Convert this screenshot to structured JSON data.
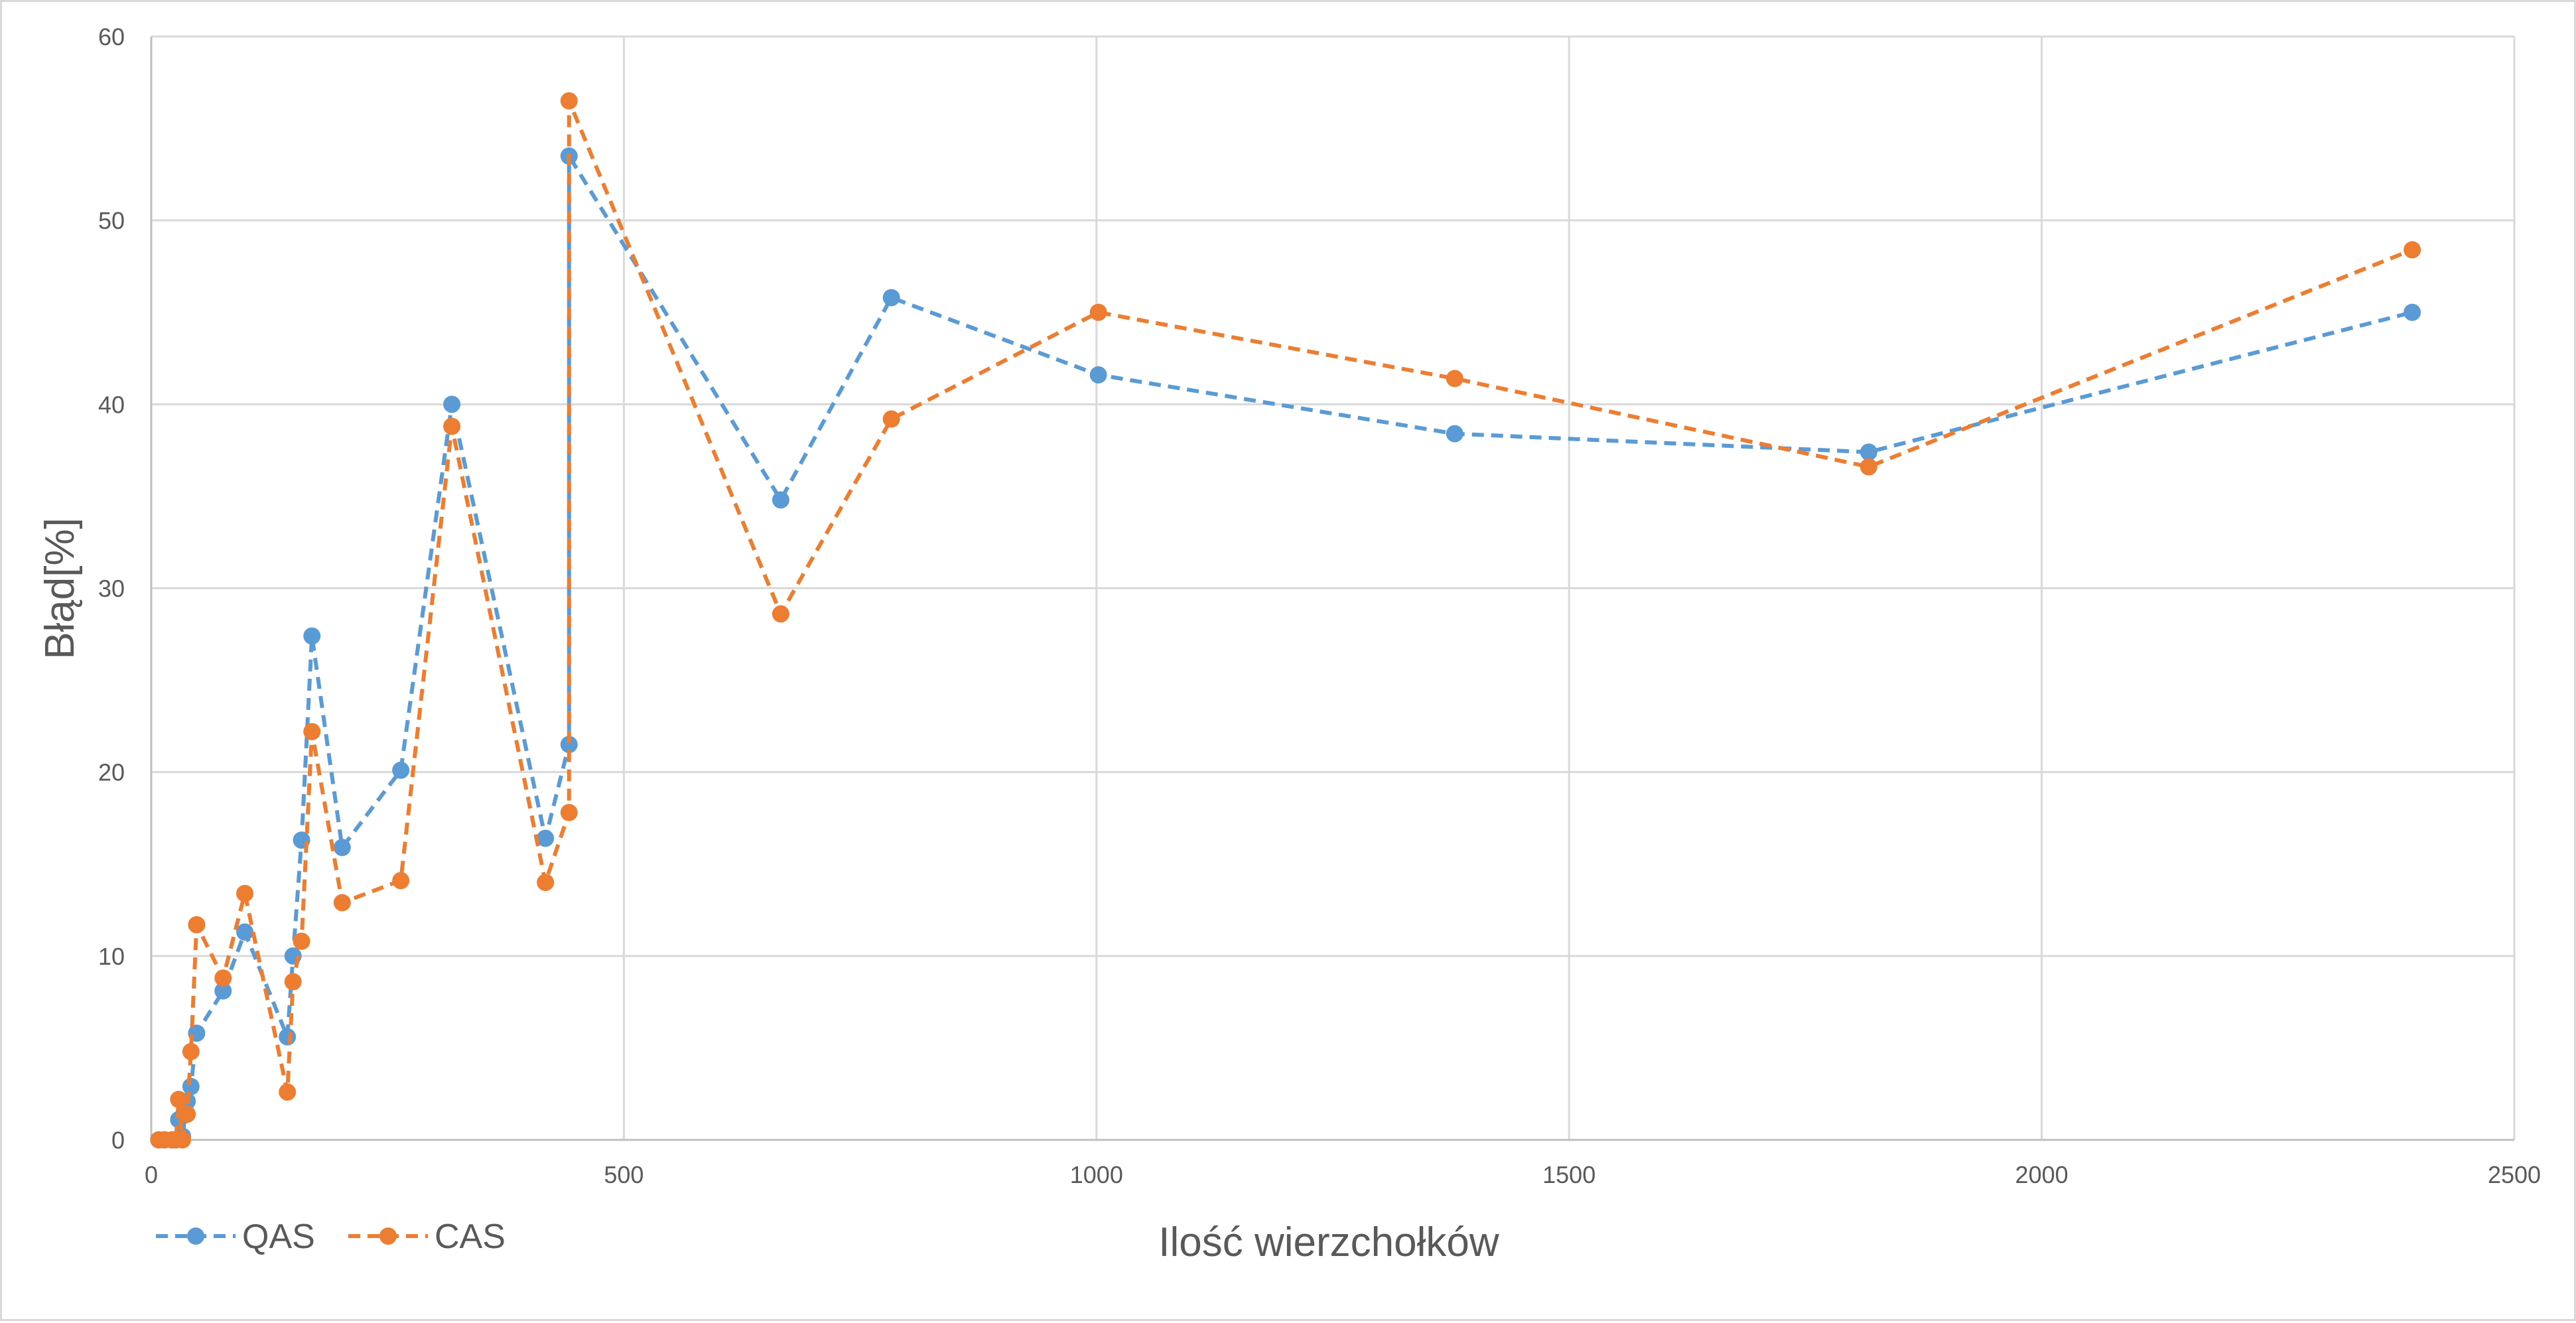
{
  "chart_data": {
    "type": "line",
    "title": "",
    "xlabel": "Ilość wierzchołków",
    "ylabel": "Błąd[%]",
    "xlim": [
      0,
      2500
    ],
    "ylim": [
      0,
      60
    ],
    "x_ticks": [
      "0",
      "500",
      "1000",
      "1500",
      "2000",
      "2500"
    ],
    "y_ticks": [
      "0",
      "10",
      "20",
      "30",
      "40",
      "50",
      "60"
    ],
    "grid": true,
    "legend_position": "bottom-left",
    "series": [
      {
        "name": "QAS",
        "color": "#5b9bd5",
        "line_style": "dashed",
        "marker": "circle",
        "points": [
          [
            8,
            0
          ],
          [
            14,
            0
          ],
          [
            22,
            0
          ],
          [
            26,
            0
          ],
          [
            29,
            1.1
          ],
          [
            33,
            0.2
          ],
          [
            38,
            2.1
          ],
          [
            42,
            2.9
          ],
          [
            48,
            5.8
          ],
          [
            76,
            8.1
          ],
          [
            99,
            11.3
          ],
          [
            144,
            5.6
          ],
          [
            150,
            10
          ],
          [
            159,
            16.3
          ],
          [
            170,
            27.4
          ],
          [
            202,
            15.9
          ],
          [
            264,
            20.1
          ],
          [
            318,
            40
          ],
          [
            417,
            16.4
          ],
          [
            442,
            21.5
          ],
          [
            442,
            53.5
          ],
          [
            666,
            34.8
          ],
          [
            783,
            45.8
          ],
          [
            1002,
            41.6
          ],
          [
            1379,
            38.4
          ],
          [
            1817,
            37.4
          ],
          [
            2392,
            45
          ]
        ]
      },
      {
        "name": "CAS",
        "color": "#ed7d31",
        "line_style": "dashed",
        "marker": "circle",
        "points": [
          [
            8,
            0
          ],
          [
            14,
            0
          ],
          [
            22,
            0
          ],
          [
            26,
            0
          ],
          [
            29,
            2.2
          ],
          [
            33,
            0
          ],
          [
            38,
            1.4
          ],
          [
            42,
            4.8
          ],
          [
            48,
            11.7
          ],
          [
            76,
            8.8
          ],
          [
            99,
            13.4
          ],
          [
            144,
            2.6
          ],
          [
            150,
            8.6
          ],
          [
            159,
            10.8
          ],
          [
            170,
            22.2
          ],
          [
            202,
            12.9
          ],
          [
            264,
            14.1
          ],
          [
            318,
            38.8
          ],
          [
            417,
            14
          ],
          [
            442,
            17.8
          ],
          [
            442,
            56.5
          ],
          [
            666,
            28.6
          ],
          [
            783,
            39.2
          ],
          [
            1002,
            45
          ],
          [
            1379,
            41.4
          ],
          [
            1817,
            36.6
          ],
          [
            2392,
            48.4
          ]
        ]
      }
    ]
  }
}
